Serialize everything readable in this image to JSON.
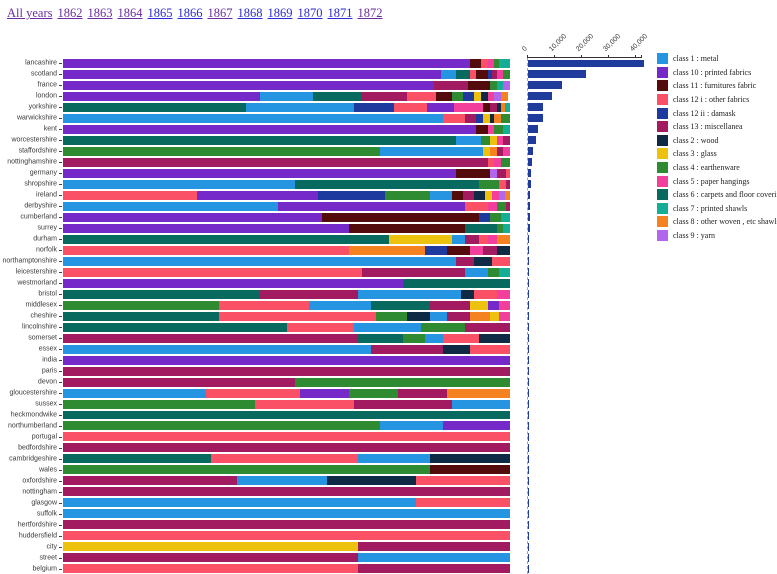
{
  "nav": {
    "links": [
      {
        "label": "All years",
        "visited": true
      },
      {
        "label": "1862",
        "visited": true
      },
      {
        "label": "1863",
        "visited": true
      },
      {
        "label": "1864",
        "visited": true
      },
      {
        "label": "1865",
        "visited": false
      },
      {
        "label": "1866",
        "visited": false
      },
      {
        "label": "1867",
        "visited": true
      },
      {
        "label": "1868",
        "visited": false
      },
      {
        "label": "1869",
        "visited": false
      },
      {
        "label": "1870",
        "visited": false
      },
      {
        "label": "1871",
        "visited": false
      },
      {
        "label": "1872",
        "visited": true
      }
    ]
  },
  "chart_data": {
    "type": "bar",
    "subtype": "100pct-stacked-horizontal with totals bar chart",
    "title": "",
    "xlabel": "",
    "ylabel": "",
    "classes": [
      {
        "key": "c1",
        "label": "class 1 : metal",
        "color": "#2595E1"
      },
      {
        "key": "c10",
        "label": "class 10 : printed fabrics",
        "color": "#7629C9"
      },
      {
        "key": "c11",
        "label": "class 11 : furnitures fabric",
        "color": "#540B0B"
      },
      {
        "key": "c12i",
        "label": "class 12 i : other fabrics",
        "color": "#FA5167"
      },
      {
        "key": "c12ii",
        "label": "class 12 ii : damask",
        "color": "#1E3A9F"
      },
      {
        "key": "c13",
        "label": "class 13 : miscellanea",
        "color": "#A21A60"
      },
      {
        "key": "c2",
        "label": "class 2 : wood",
        "color": "#0F2A44"
      },
      {
        "key": "c3",
        "label": "class 3 : glass",
        "color": "#EDC20F"
      },
      {
        "key": "c4",
        "label": "class 4 : earthenware",
        "color": "#2E8B31"
      },
      {
        "key": "c5",
        "label": "class 5 : paper hangings",
        "color": "#F23F9B"
      },
      {
        "key": "c6",
        "label": "class 6 : carpets and floor coverings",
        "color": "#086A5F"
      },
      {
        "key": "c7",
        "label": "class 7 : printed shawls",
        "color": "#14AE96"
      },
      {
        "key": "c8",
        "label": "class 8 : other woven , etc shawls",
        "color": "#F58220"
      },
      {
        "key": "c9",
        "label": "class 9 : yarn",
        "color": "#B166ED"
      }
    ],
    "categories": [
      "lancashire",
      "scotland",
      "france",
      "london",
      "yorkshire",
      "warwickshire",
      "kent",
      "worcestershire",
      "staffordshire",
      "nottinghamshire",
      "germany",
      "shropshire",
      "ireland",
      "derbyshire",
      "cumberland",
      "surrey",
      "durham",
      "norfolk",
      "northamptonshire",
      "leicestershire",
      "westmorland",
      "bristol",
      "middlesex",
      "cheshire",
      "lincolnshire",
      "somerset",
      "essex",
      "india",
      "paris",
      "devon",
      "gloucestershire",
      "sussex",
      "heckmondwike",
      "northumberland",
      "portugal",
      "bedfordshire",
      "cambridgeshire",
      "wales",
      "oxfordshire",
      "nottingham",
      "glasgow",
      "suffolk",
      "hertfordshire",
      "huddersfield",
      "city",
      "street",
      "belgium"
    ],
    "stacks": [
      [
        [
          "c10",
          91
        ],
        [
          "c11",
          2.5
        ],
        [
          "c12i",
          1.5
        ],
        [
          "c5",
          1.5
        ],
        [
          "c4",
          1
        ],
        [
          "c7",
          2.5
        ]
      ],
      [
        [
          "c10",
          84.5
        ],
        [
          "c1",
          3.5
        ],
        [
          "c6",
          3
        ],
        [
          "c12i",
          1.5
        ],
        [
          "c11",
          2.5
        ],
        [
          "c12ii",
          1
        ],
        [
          "c13",
          1
        ],
        [
          "c5",
          1.5
        ],
        [
          "c4",
          1.5
        ]
      ],
      [
        [
          "c10",
          83
        ],
        [
          "c13",
          7.5
        ],
        [
          "c11",
          5
        ],
        [
          "c4",
          1.5
        ],
        [
          "c7",
          1.5
        ],
        [
          "c9",
          1.5
        ]
      ],
      [
        [
          "c10",
          44
        ],
        [
          "c1",
          12
        ],
        [
          "c6",
          11
        ],
        [
          "c13",
          10
        ],
        [
          "c12i",
          6.5
        ],
        [
          "c11",
          3.5
        ],
        [
          "c4",
          2.5
        ],
        [
          "c12ii",
          2.5
        ],
        [
          "c3",
          1.5
        ],
        [
          "c2",
          1.5
        ],
        [
          "c5",
          1.5
        ],
        [
          "c9",
          1.5
        ],
        [
          "c8",
          1.5
        ]
      ],
      [
        [
          "c6",
          41
        ],
        [
          "c1",
          24
        ],
        [
          "c12ii",
          9
        ],
        [
          "c12i",
          7.5
        ],
        [
          "c10",
          6
        ],
        [
          "c5",
          6.5
        ],
        [
          "c11",
          1.5
        ],
        [
          "c13",
          1.5
        ],
        [
          "c2",
          1
        ],
        [
          "c8",
          1
        ],
        [
          "c7",
          1
        ]
      ],
      [
        [
          "c1",
          85
        ],
        [
          "c12i",
          5
        ],
        [
          "c13",
          2.5
        ],
        [
          "c12ii",
          1.5
        ],
        [
          "c3",
          1.5
        ],
        [
          "c2",
          1
        ],
        [
          "c8",
          1.5
        ],
        [
          "c4",
          2
        ]
      ],
      [
        [
          "c10",
          92.5
        ],
        [
          "c11",
          2.5
        ],
        [
          "c5",
          1.5
        ],
        [
          "c4",
          2
        ],
        [
          "c7",
          1.5
        ]
      ],
      [
        [
          "c6",
          88
        ],
        [
          "c1",
          5.5
        ],
        [
          "c4",
          2
        ],
        [
          "c3",
          1.5
        ],
        [
          "c5",
          1.5
        ],
        [
          "c13",
          1.5
        ]
      ],
      [
        [
          "c4",
          71
        ],
        [
          "c1",
          23
        ],
        [
          "c3",
          1.5
        ],
        [
          "c8",
          1.5
        ],
        [
          "c13",
          1.5
        ],
        [
          "c5",
          1.5
        ]
      ],
      [
        [
          "c13",
          95
        ],
        [
          "c12i",
          1.5
        ],
        [
          "c5",
          1.5
        ],
        [
          "c4",
          2
        ]
      ],
      [
        [
          "c10",
          88
        ],
        [
          "c11",
          7.5
        ],
        [
          "c9",
          1.5
        ],
        [
          "c13",
          2
        ],
        [
          "c12i",
          1
        ]
      ],
      [
        [
          "c1",
          52
        ],
        [
          "c6",
          41
        ],
        [
          "c4",
          4.5
        ],
        [
          "c12i",
          1.5
        ],
        [
          "c13",
          1
        ]
      ],
      [
        [
          "c12i",
          30
        ],
        [
          "c10",
          27
        ],
        [
          "c12ii",
          15
        ],
        [
          "c4",
          10
        ],
        [
          "c1",
          5
        ],
        [
          "c11",
          2.5
        ],
        [
          "c13",
          2.5
        ],
        [
          "c2",
          2.5
        ],
        [
          "c3",
          1.5
        ],
        [
          "c5",
          1.5
        ],
        [
          "c9",
          1.5
        ],
        [
          "c8",
          1
        ]
      ],
      [
        [
          "c1",
          48
        ],
        [
          "c10",
          42
        ],
        [
          "c12i",
          5
        ],
        [
          "c5",
          2
        ],
        [
          "c4",
          2
        ],
        [
          "c13",
          1
        ]
      ],
      [
        [
          "c10",
          58
        ],
        [
          "c11",
          35
        ],
        [
          "c12ii",
          2.5
        ],
        [
          "c4",
          2.5
        ],
        [
          "c7",
          2
        ]
      ],
      [
        [
          "c10",
          64
        ],
        [
          "c11",
          26
        ],
        [
          "c6",
          7
        ],
        [
          "c4",
          1.5
        ],
        [
          "c7",
          1.5
        ]
      ],
      [
        [
          "c6",
          73
        ],
        [
          "c3",
          14
        ],
        [
          "c1",
          3
        ],
        [
          "c13",
          3
        ],
        [
          "c12i",
          2
        ],
        [
          "c5",
          2
        ],
        [
          "c8",
          3
        ]
      ],
      [
        [
          "c12i",
          64
        ],
        [
          "c8",
          17
        ],
        [
          "c12ii",
          5
        ],
        [
          "c11",
          5
        ],
        [
          "c5",
          3
        ],
        [
          "c13",
          3
        ],
        [
          "c2",
          3
        ]
      ],
      [
        [
          "c1",
          88
        ],
        [
          "c13",
          4
        ],
        [
          "c2",
          4
        ],
        [
          "c12i",
          4
        ]
      ],
      [
        [
          "c12i",
          67
        ],
        [
          "c13",
          23
        ],
        [
          "c1",
          5
        ],
        [
          "c4",
          2.5
        ],
        [
          "c7",
          2.5
        ]
      ],
      [
        [
          "c10",
          76
        ],
        [
          "c6",
          24
        ]
      ],
      [
        [
          "c6",
          44
        ],
        [
          "c13",
          22
        ],
        [
          "c1",
          23
        ],
        [
          "c2",
          3
        ],
        [
          "c12i",
          5
        ],
        [
          "c5",
          3
        ]
      ],
      [
        [
          "c4",
          35
        ],
        [
          "c12i",
          20
        ],
        [
          "c1",
          14
        ],
        [
          "c6",
          13
        ],
        [
          "c13",
          9
        ],
        [
          "c3",
          4
        ],
        [
          "c10",
          2.5
        ],
        [
          "c5",
          2.5
        ]
      ],
      [
        [
          "c6",
          35
        ],
        [
          "c12i",
          35
        ],
        [
          "c4",
          7
        ],
        [
          "c2",
          5
        ],
        [
          "c1",
          4
        ],
        [
          "c13",
          5
        ],
        [
          "c8",
          4.5
        ],
        [
          "c3",
          2
        ],
        [
          "c5",
          2.5
        ]
      ],
      [
        [
          "c6",
          50
        ],
        [
          "c12i",
          15
        ],
        [
          "c1",
          15
        ],
        [
          "c4",
          10
        ],
        [
          "c13",
          10
        ]
      ],
      [
        [
          "c13",
          66
        ],
        [
          "c6",
          10
        ],
        [
          "c4",
          5
        ],
        [
          "c1",
          4
        ],
        [
          "c12i",
          8
        ],
        [
          "c2",
          7
        ]
      ],
      [
        [
          "c1",
          69
        ],
        [
          "c13",
          16
        ],
        [
          "c2",
          6
        ],
        [
          "c12i",
          9
        ]
      ],
      [
        [
          "c10",
          100
        ]
      ],
      [
        [
          "c13",
          100
        ]
      ],
      [
        [
          "c13",
          52
        ],
        [
          "c4",
          48
        ]
      ],
      [
        [
          "c1",
          32
        ],
        [
          "c12i",
          21
        ],
        [
          "c10",
          11
        ],
        [
          "c4",
          11
        ],
        [
          "c13",
          11
        ],
        [
          "c8",
          14
        ]
      ],
      [
        [
          "c4",
          43
        ],
        [
          "c12i",
          22
        ],
        [
          "c13",
          22
        ],
        [
          "c1",
          13
        ]
      ],
      [
        [
          "c6",
          100
        ]
      ],
      [
        [
          "c4",
          71
        ],
        [
          "c1",
          14
        ],
        [
          "c10",
          15
        ]
      ],
      [
        [
          "c12i",
          100
        ]
      ],
      [
        [
          "c13",
          100
        ]
      ],
      [
        [
          "c6",
          33
        ],
        [
          "c12i",
          33
        ],
        [
          "c1",
          16
        ],
        [
          "c2",
          18
        ]
      ],
      [
        [
          "c4",
          82
        ],
        [
          "c11",
          18
        ]
      ],
      [
        [
          "c13",
          39
        ],
        [
          "c1",
          20
        ],
        [
          "c2",
          20
        ],
        [
          "c12i",
          21
        ]
      ],
      [
        [
          "c13",
          100
        ]
      ],
      [
        [
          "c1",
          79
        ],
        [
          "c12i",
          21
        ]
      ],
      [
        [
          "c1",
          100
        ]
      ],
      [
        [
          "c13",
          100
        ]
      ],
      [
        [
          "c12i",
          100
        ]
      ],
      [
        [
          "c3",
          66
        ],
        [
          "c13",
          34
        ]
      ],
      [
        [
          "c13",
          66
        ],
        [
          "c1",
          34
        ]
      ],
      [
        [
          "c12i",
          66
        ],
        [
          "c13",
          34
        ]
      ]
    ],
    "totals": [
      43000,
      21500,
      12500,
      9000,
      5600,
      5600,
      3700,
      3000,
      1700,
      1400,
      1200,
      1000,
      900,
      800,
      700,
      600,
      550,
      500,
      450,
      420,
      380,
      350,
      330,
      300,
      280,
      260,
      240,
      220,
      200,
      190,
      180,
      170,
      160,
      150,
      140,
      130,
      120,
      110,
      100,
      90,
      85,
      80,
      70,
      60,
      50,
      40,
      30
    ],
    "totals_axis": {
      "ticks": [
        "0",
        "10,000",
        "20,000",
        "30,000",
        "40,000"
      ],
      "tick_values": [
        0,
        10000,
        20000,
        30000,
        40000
      ],
      "bar_color": "#1F3C9C",
      "dashed_zero_line_color": "#8FA6DC",
      "grid": false,
      "legend_position": "right"
    }
  }
}
